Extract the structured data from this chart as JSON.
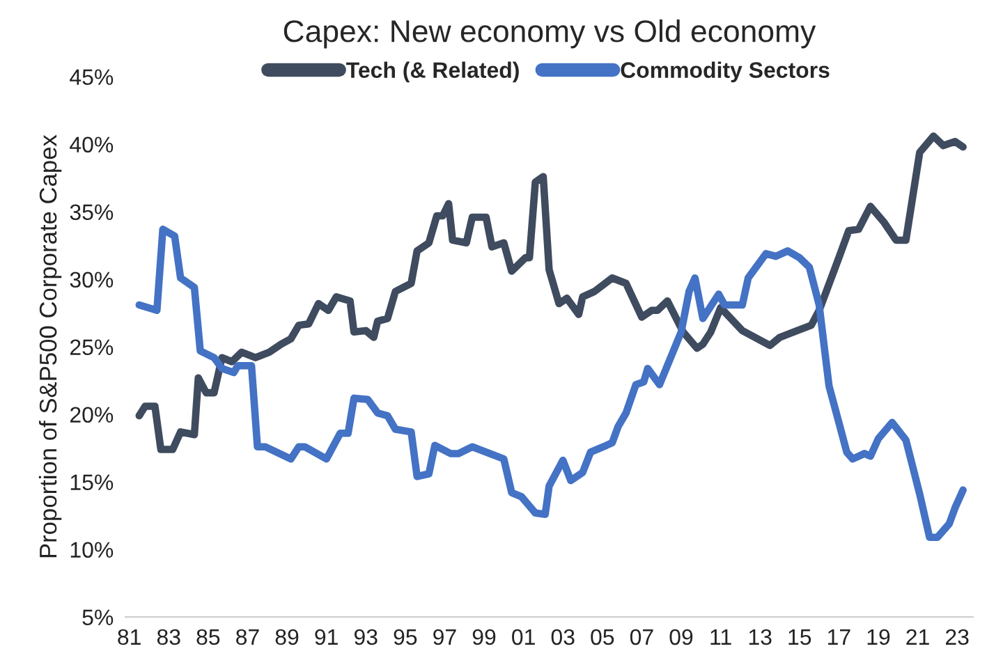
{
  "chart_data": {
    "type": "line",
    "title": "Capex: New economy vs Old economy",
    "ylabel": "Proportion of S&P500 Corporate Capex",
    "xlim": [
      1980.8,
      2023.8
    ],
    "xticks": [
      {
        "value": 1981,
        "label": "81"
      },
      {
        "value": 1983,
        "label": "83"
      },
      {
        "value": 1985,
        "label": "85"
      },
      {
        "value": 1987,
        "label": "87"
      },
      {
        "value": 1989,
        "label": "89"
      },
      {
        "value": 1991,
        "label": "91"
      },
      {
        "value": 1993,
        "label": "93"
      },
      {
        "value": 1995,
        "label": "95"
      },
      {
        "value": 1997,
        "label": "97"
      },
      {
        "value": 1999,
        "label": "99"
      },
      {
        "value": 2001,
        "label": "01"
      },
      {
        "value": 2003,
        "label": "03"
      },
      {
        "value": 2005,
        "label": "05"
      },
      {
        "value": 2007,
        "label": "07"
      },
      {
        "value": 2009,
        "label": "09"
      },
      {
        "value": 2011,
        "label": "11"
      },
      {
        "value": 2013,
        "label": "13"
      },
      {
        "value": 2015,
        "label": "15"
      },
      {
        "value": 2017,
        "label": "17"
      },
      {
        "value": 2019,
        "label": "19"
      },
      {
        "value": 2021,
        "label": "21"
      },
      {
        "value": 2023,
        "label": "23"
      }
    ],
    "ylim": [
      5,
      45
    ],
    "yticks": [
      {
        "value": 5,
        "label": "5%"
      },
      {
        "value": 10,
        "label": "10%"
      },
      {
        "value": 15,
        "label": "15%"
      },
      {
        "value": 20,
        "label": "20%"
      },
      {
        "value": 25,
        "label": "25%"
      },
      {
        "value": 30,
        "label": "30%"
      },
      {
        "value": 35,
        "label": "35%"
      },
      {
        "value": 40,
        "label": "40%"
      },
      {
        "value": 45,
        "label": "45%"
      }
    ],
    "grid": false,
    "legend": "top",
    "line_style": "solid",
    "marker": "none",
    "series": [
      {
        "name": "Tech (& Related)",
        "color": "#3f4b5e",
        "x": [
          1981.5,
          1981.8,
          1982.3,
          1982.6,
          1983.2,
          1983.6,
          1984.3,
          1984.5,
          1984.9,
          1985.3,
          1985.7,
          1986.2,
          1986.7,
          1987.4,
          1988.1,
          1988.7,
          1989.2,
          1989.6,
          1990.1,
          1990.6,
          1991.1,
          1991.5,
          1992.2,
          1992.4,
          1993.0,
          1993.4,
          1993.6,
          1994.1,
          1994.5,
          1995.3,
          1995.6,
          1996.2,
          1996.6,
          1996.9,
          1997.2,
          1997.4,
          1998.1,
          1998.4,
          1999.1,
          1999.4,
          2000.0,
          2000.4,
          2001.1,
          2001.3,
          2001.6,
          2002.0,
          2002.3,
          2002.8,
          2003.2,
          2003.8,
          2004.0,
          2004.6,
          2005.5,
          2006.2,
          2007.0,
          2007.5,
          2007.8,
          2008.3,
          2009.1,
          2009.8,
          2010.1,
          2010.5,
          2011.0,
          2012.1,
          2013.5,
          2014.0,
          2014.7,
          2015.6,
          2016.0,
          2017.0,
          2017.5,
          2018.0,
          2018.6,
          2019.3,
          2019.9,
          2020.4,
          2021.1,
          2021.8,
          2022.3,
          2022.9,
          2023.3
        ],
        "values": [
          19.9,
          20.6,
          20.6,
          17.4,
          17.4,
          18.7,
          18.5,
          22.7,
          21.6,
          21.6,
          24.2,
          23.9,
          24.6,
          24.2,
          24.6,
          25.2,
          25.6,
          26.6,
          26.7,
          28.2,
          27.7,
          28.7,
          28.4,
          26.1,
          26.2,
          25.7,
          26.9,
          27.1,
          29.1,
          29.7,
          32.1,
          32.7,
          34.7,
          34.7,
          35.6,
          32.9,
          32.7,
          34.6,
          34.6,
          32.4,
          32.7,
          30.6,
          31.6,
          31.6,
          37.2,
          37.6,
          30.7,
          28.2,
          28.6,
          27.4,
          28.7,
          29.1,
          30.1,
          29.7,
          27.2,
          27.7,
          27.7,
          28.4,
          26.1,
          24.9,
          25.2,
          26.1,
          27.9,
          26.2,
          25.1,
          25.7,
          26.1,
          26.6,
          27.7,
          31.6,
          33.6,
          33.7,
          35.4,
          34.2,
          32.9,
          32.9,
          39.4,
          40.6,
          39.9,
          40.2,
          39.8
        ]
      },
      {
        "name": "Commodity Sectors",
        "color": "#4472c4",
        "x": [
          1981.5,
          1982.4,
          1982.7,
          1983.3,
          1983.6,
          1984.3,
          1984.6,
          1985.3,
          1985.7,
          1986.3,
          1986.5,
          1987.2,
          1987.5,
          1987.9,
          1989.2,
          1989.6,
          1989.9,
          1991.0,
          1991.7,
          1992.1,
          1992.4,
          1993.1,
          1993.6,
          1994.1,
          1994.5,
          1995.3,
          1995.6,
          1996.2,
          1996.5,
          1997.3,
          1997.7,
          1998.4,
          2000.0,
          2000.4,
          2000.9,
          2001.6,
          2002.1,
          2002.3,
          2003.0,
          2003.4,
          2004.0,
          2004.4,
          2005.2,
          2005.5,
          2005.8,
          2006.2,
          2006.7,
          2007.1,
          2007.3,
          2007.9,
          2009.0,
          2009.4,
          2009.7,
          2010.1,
          2010.9,
          2011.2,
          2012.1,
          2012.4,
          2013.3,
          2013.8,
          2014.4,
          2015.0,
          2015.5,
          2016.0,
          2016.5,
          2017.0,
          2017.4,
          2017.7,
          2018.3,
          2018.6,
          2019.0,
          2019.7,
          2020.4,
          2021.1,
          2021.6,
          2022.0,
          2022.6,
          2022.9,
          2023.3
        ],
        "values": [
          28.1,
          27.7,
          33.7,
          33.2,
          30.1,
          29.4,
          24.7,
          24.2,
          23.4,
          23.1,
          23.6,
          23.6,
          17.6,
          17.6,
          16.7,
          17.6,
          17.6,
          16.7,
          18.6,
          18.6,
          21.2,
          21.1,
          20.1,
          19.9,
          18.9,
          18.7,
          15.4,
          15.6,
          17.7,
          17.1,
          17.1,
          17.6,
          16.7,
          14.2,
          13.9,
          12.7,
          12.6,
          14.7,
          16.6,
          15.1,
          15.7,
          17.2,
          17.7,
          17.9,
          19.1,
          20.1,
          22.2,
          22.4,
          23.4,
          22.2,
          26.1,
          29.1,
          30.1,
          27.1,
          28.9,
          28.1,
          28.1,
          30.1,
          31.9,
          31.7,
          32.1,
          31.6,
          30.9,
          28.1,
          22.1,
          19.4,
          17.2,
          16.7,
          17.1,
          16.9,
          18.2,
          19.4,
          18.1,
          14.1,
          10.9,
          10.9,
          11.9,
          13.1,
          14.4
        ]
      }
    ]
  }
}
